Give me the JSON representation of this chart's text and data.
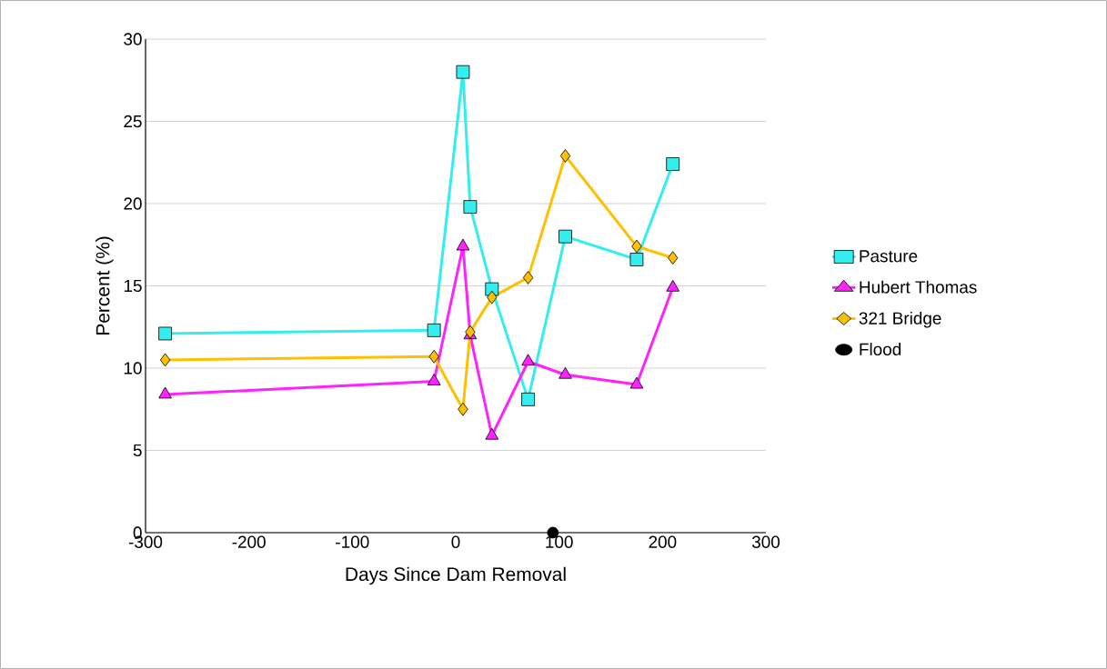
{
  "chart_data": {
    "type": "line",
    "xlabel": "Days Since Dam Removal",
    "ylabel": "Percent (%)",
    "xlim": [
      -300,
      300
    ],
    "xticks": [
      -300,
      -200,
      -100,
      0,
      100,
      200,
      300
    ],
    "ylim": [
      0,
      30
    ],
    "yticks": [
      0,
      5,
      10,
      15,
      20,
      25,
      30
    ],
    "grid": "y",
    "legend": "right",
    "series": [
      {
        "name": "Pasture",
        "type": "line",
        "marker": "square",
        "color": "#33eeee",
        "x": [
          -281,
          -21,
          7,
          14,
          35,
          70,
          106,
          175,
          210
        ],
        "values": [
          12.1,
          12.3,
          28.0,
          19.8,
          14.8,
          8.1,
          18.0,
          16.6,
          22.4
        ]
      },
      {
        "name": "Hubert Thomas",
        "type": "line",
        "marker": "triangle",
        "color": "#ff22ff",
        "x": [
          -281,
          -21,
          7,
          14,
          35,
          70,
          106,
          175,
          210
        ],
        "values": [
          8.4,
          9.2,
          17.4,
          12.0,
          5.9,
          10.4,
          9.6,
          9.0,
          14.9
        ]
      },
      {
        "name": "321 Bridge",
        "type": "line",
        "marker": "diamond",
        "color": "#ffc000",
        "x": [
          -281,
          -21,
          7,
          14,
          35,
          70,
          106,
          175,
          210
        ],
        "values": [
          10.5,
          10.7,
          7.5,
          12.2,
          14.3,
          15.5,
          22.9,
          17.4,
          16.7
        ]
      },
      {
        "name": "Flood",
        "type": "scatter",
        "marker": "circle",
        "color": "#000000",
        "x": [
          94
        ],
        "values": [
          0
        ]
      }
    ]
  }
}
